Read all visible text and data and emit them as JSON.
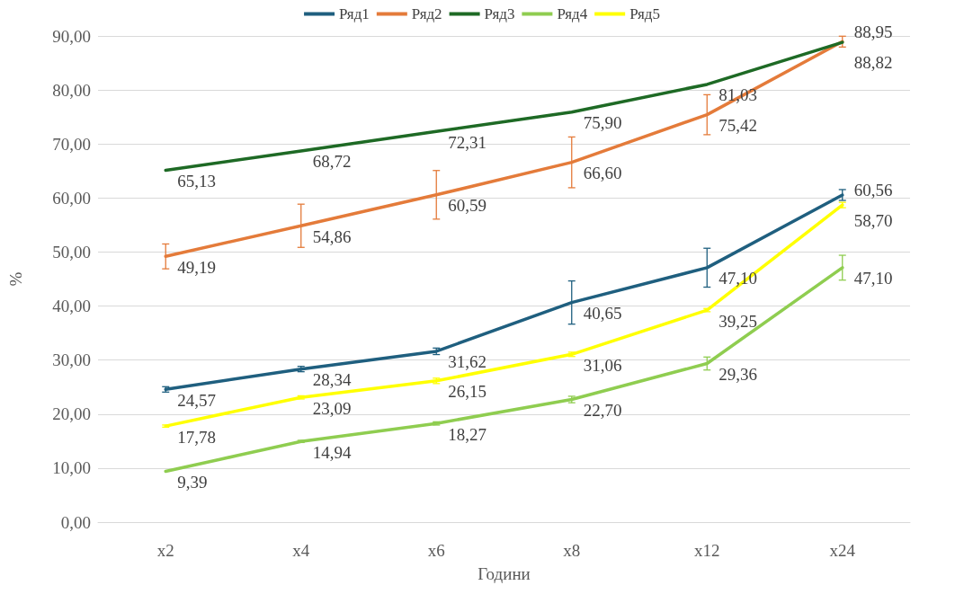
{
  "chart_data": {
    "type": "line",
    "xlabel": "Години",
    "ylabel": "%",
    "categories": [
      "x2",
      "x4",
      "x6",
      "x8",
      "x12",
      "x24"
    ],
    "series": [
      {
        "name": "Ряд1",
        "color": "#1f5f7f",
        "values": [
          24.57,
          28.34,
          31.62,
          40.65,
          47.1,
          60.56
        ],
        "value_labels": [
          "24,57",
          "28,34",
          "31,62",
          "40,65",
          "47,10",
          "60,56"
        ],
        "errors": [
          0.5,
          0.5,
          0.6,
          4,
          3.6,
          1
        ]
      },
      {
        "name": "Ряд2",
        "color": "#e47b3a",
        "values": [
          49.19,
          54.86,
          60.59,
          66.6,
          75.42,
          88.95
        ],
        "value_labels": [
          "49,19",
          "54,86",
          "60,59",
          "66,60",
          "75,42",
          "88,95"
        ],
        "errors": [
          2.3,
          4,
          4.5,
          4.7,
          3.7,
          1
        ]
      },
      {
        "name": "Ряд3",
        "color": "#1e6a25",
        "values": [
          65.13,
          68.72,
          72.31,
          75.9,
          81.03,
          88.82
        ],
        "value_labels": [
          "65,13",
          "68,72",
          "72,31",
          "75,90",
          "81,03",
          "88,82"
        ]
      },
      {
        "name": "Ряд4",
        "color": "#8fcd50",
        "values": [
          9.39,
          14.94,
          18.27,
          22.7,
          29.36,
          47.1
        ],
        "value_labels": [
          "9,39",
          "14,94",
          "18,27",
          "22,70",
          "29,36",
          "47,10"
        ],
        "errors": [
          null,
          0.2,
          0.3,
          0.6,
          1.2,
          2.3
        ]
      },
      {
        "name": "Ряд5",
        "color": "#ffff00",
        "values": [
          17.78,
          23.09,
          26.15,
          31.06,
          39.25,
          58.7
        ],
        "value_labels": [
          "17,78",
          "23,09",
          "26,15",
          "31,06",
          "39,25",
          "58,70"
        ],
        "errors": [
          0.2,
          0.3,
          0.5,
          0.4,
          0.3,
          0.5
        ]
      }
    ],
    "ylim": [
      0,
      90
    ],
    "yticks": [
      {
        "value": 0,
        "label": "0,00"
      },
      {
        "value": 10,
        "label": "10,00"
      },
      {
        "value": 20,
        "label": "20,00"
      },
      {
        "value": 30,
        "label": "30,00"
      },
      {
        "value": 40,
        "label": "40,00"
      },
      {
        "value": 50,
        "label": "50,00"
      },
      {
        "value": 60,
        "label": "60,00"
      },
      {
        "value": 70,
        "label": "70,00"
      },
      {
        "value": 80,
        "label": "80,00"
      },
      {
        "value": 90,
        "label": "90,00"
      }
    ],
    "grid": "y",
    "legend": "top",
    "marker": "none",
    "line_style": "solid"
  }
}
